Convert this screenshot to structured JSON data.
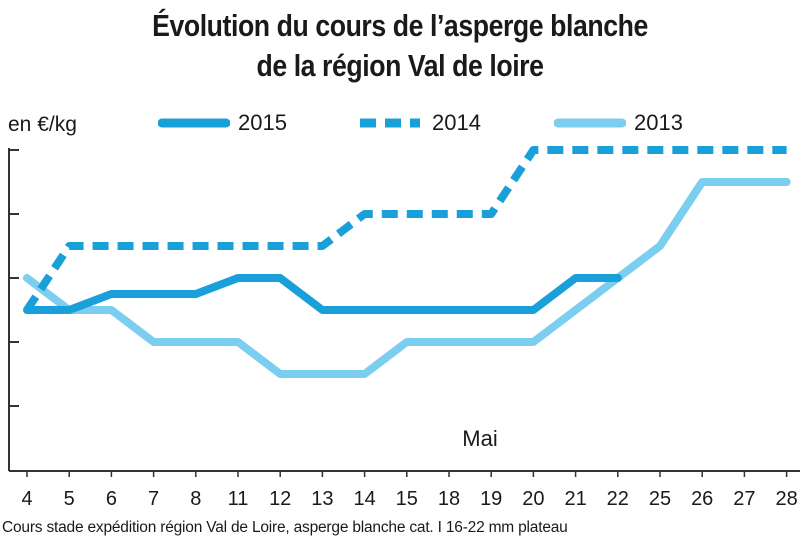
{
  "title_line1": "Évolution du cours de l’asperge blanche",
  "title_line2": "de la région Val de loire",
  "unit_label": "en €/kg",
  "annotation": "Mai",
  "footnote": "Cours stade expédition région Val de Loire, asperge blanche cat. I 16-22 mm plateau",
  "chart_data": {
    "type": "line",
    "title": "Évolution du cours de l’asperge blanche de la région Val de loire",
    "ylabel": "en €/kg",
    "xlabel": "",
    "categories": [
      "4",
      "5",
      "6",
      "7",
      "8",
      "11",
      "12",
      "13",
      "14",
      "15",
      "18",
      "19",
      "20",
      "21",
      "22",
      "25",
      "26",
      "27",
      "28"
    ],
    "y_tick_labels_shown": false,
    "grid": false,
    "legend_position": "top",
    "annotations": [
      "Mai"
    ],
    "series": [
      {
        "name": "2015",
        "style": "solid-thick",
        "color": "#1aa0d8",
        "points": [
          [
            0,
            2.5
          ],
          [
            1,
            2.5
          ],
          [
            2,
            2.75
          ],
          [
            3,
            2.75
          ],
          [
            4,
            2.75
          ],
          [
            5,
            3.0
          ],
          [
            6,
            3.0
          ],
          [
            7,
            2.5
          ],
          [
            8,
            2.5
          ],
          [
            9,
            2.5
          ],
          [
            10,
            2.5
          ],
          [
            11,
            2.5
          ],
          [
            12,
            2.5
          ],
          [
            13,
            3.0
          ],
          [
            14,
            3.0
          ]
        ]
      },
      {
        "name": "2014",
        "style": "dashed",
        "color": "#1aa0d8",
        "points": [
          [
            0,
            2.5
          ],
          [
            1,
            3.5
          ],
          [
            2,
            3.5
          ],
          [
            3,
            3.5
          ],
          [
            4,
            3.5
          ],
          [
            5,
            3.5
          ],
          [
            6,
            3.5
          ],
          [
            7,
            3.5
          ],
          [
            8,
            4.0
          ],
          [
            9,
            4.0
          ],
          [
            10,
            4.0
          ],
          [
            11,
            4.0
          ],
          [
            12,
            5.0
          ],
          [
            13,
            5.0
          ],
          [
            14,
            5.0
          ],
          [
            15,
            5.0
          ],
          [
            16,
            5.0
          ],
          [
            17,
            5.0
          ],
          [
            18,
            5.0
          ]
        ]
      },
      {
        "name": "2013",
        "style": "solid-light",
        "color": "#7ccef0",
        "points": [
          [
            0,
            3.0
          ],
          [
            1,
            2.5
          ],
          [
            2,
            2.5
          ],
          [
            3,
            2.0
          ],
          [
            4,
            2.0
          ],
          [
            5,
            2.0
          ],
          [
            6,
            1.5
          ],
          [
            7,
            1.5
          ],
          [
            8,
            1.5
          ],
          [
            9,
            2.0
          ],
          [
            10,
            2.0
          ],
          [
            11,
            2.0
          ],
          [
            12,
            2.0
          ],
          [
            13,
            2.5
          ],
          [
            14,
            3.0
          ],
          [
            15,
            3.5
          ],
          [
            16,
            4.5
          ],
          [
            17,
            4.5
          ],
          [
            18,
            4.5
          ]
        ]
      }
    ]
  }
}
